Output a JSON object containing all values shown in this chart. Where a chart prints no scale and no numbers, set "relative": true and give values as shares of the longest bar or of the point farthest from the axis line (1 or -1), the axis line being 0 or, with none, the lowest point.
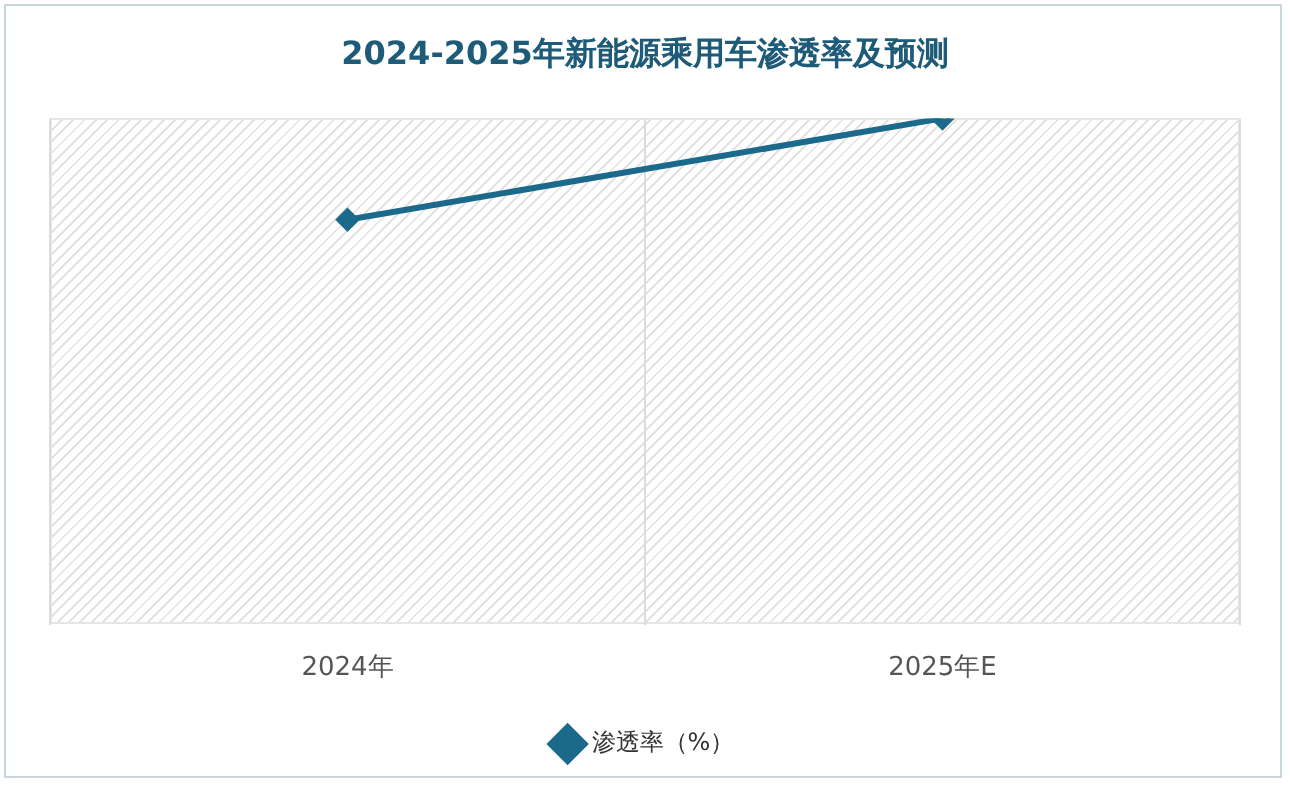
{
  "chart_data": {
    "type": "line",
    "title": "2024-2025年新能源乘用车渗透率及预测",
    "categories": [
      "2024年",
      "2025年E"
    ],
    "series": [
      {
        "name": "渗透率（%）",
        "color": "#1b6a8c",
        "values": [
          0.8,
          1
        ]
      }
    ],
    "relative": true,
    "marker": "diamond",
    "line_style": "solid",
    "grid": "x",
    "legend": "bottom"
  }
}
